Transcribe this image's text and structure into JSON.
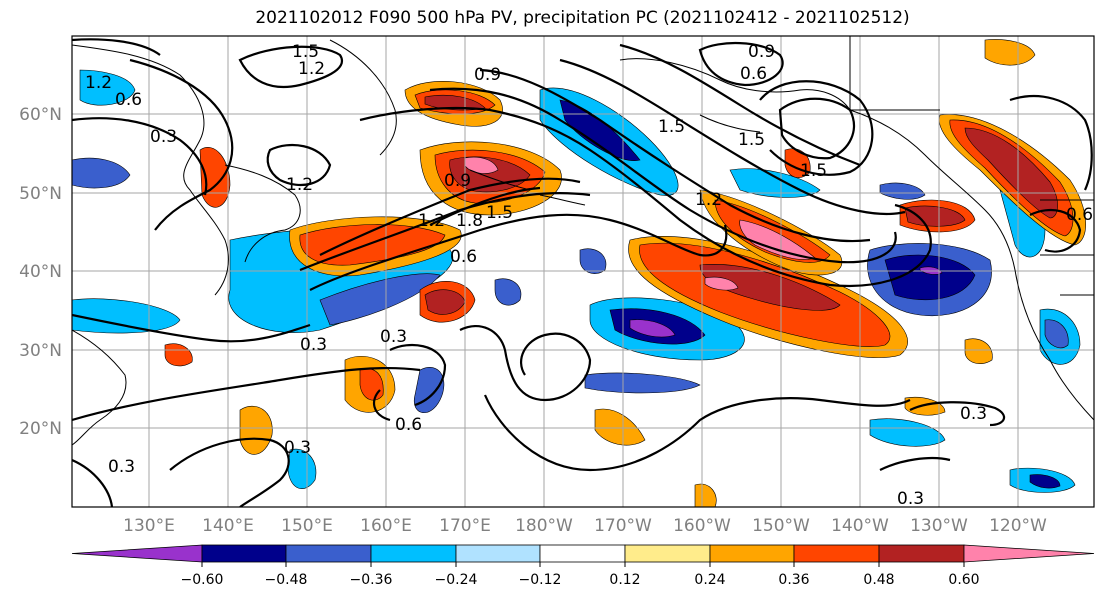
{
  "title": "2021102012 F090 500 hPa PV, precipitation PC (2021102412 - 2021102512)",
  "lat_labels": [
    "60°N",
    "50°N",
    "40°N",
    "30°N",
    "20°N"
  ],
  "lon_labels": [
    "130°E",
    "140°E",
    "150°E",
    "160°E",
    "170°E",
    "180°W",
    "170°W",
    "160°W",
    "150°W",
    "140°W",
    "130°W",
    "120°W"
  ],
  "contour_labels": [
    "1.5",
    "1.2",
    "0.9",
    "0.6",
    "0.9",
    "0.3",
    "0.6",
    "1.2",
    "0.9",
    "1.2",
    "1.8",
    "1.5",
    "0.6",
    "0.3",
    "0.3",
    "0.6",
    "0.3",
    "0.3",
    "1.5",
    "1.5",
    "1.2",
    "1.2",
    "0.3",
    "0.3",
    "1.5",
    "0.6"
  ],
  "colorbar": {
    "ticks": [
      "−0.60",
      "−0.48",
      "−0.36",
      "−0.24",
      "−0.12",
      "0.12",
      "0.24",
      "0.36",
      "0.48",
      "0.60"
    ],
    "colors": [
      "#9932cc",
      "#00008b",
      "#3a5fcd",
      "#00bfff",
      "#b0e2ff",
      "#ffffff",
      "#ffec8b",
      "#ffa500",
      "#ff4500",
      "#b22222",
      "#ff82ab"
    ]
  }
}
